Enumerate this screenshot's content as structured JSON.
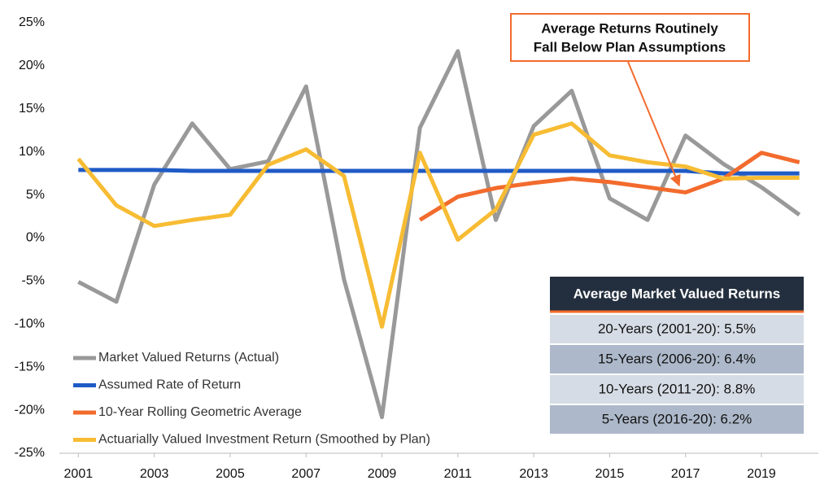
{
  "chart_data": {
    "type": "line",
    "annotation": [
      "Average Returns Routinely",
      "Fall Below Plan Assumptions"
    ],
    "x": [
      2001,
      2002,
      2003,
      2004,
      2005,
      2006,
      2007,
      2008,
      2009,
      2010,
      2011,
      2012,
      2013,
      2014,
      2015,
      2016,
      2017,
      2018,
      2019,
      2020
    ],
    "xlim": [
      2000.5,
      2020.5
    ],
    "xticks": [
      2001,
      2003,
      2005,
      2007,
      2009,
      2011,
      2013,
      2015,
      2017,
      2019
    ],
    "ylim": [
      -25,
      25
    ],
    "yticks": [
      {
        "value": -25,
        "label": "-25%"
      },
      {
        "value": -20,
        "label": "-20%"
      },
      {
        "value": -15,
        "label": "-15%"
      },
      {
        "value": -10,
        "label": "-10%"
      },
      {
        "value": -5,
        "label": "-5%"
      },
      {
        "value": 0,
        "label": "0%"
      },
      {
        "value": 5,
        "label": "5%"
      },
      {
        "value": 10,
        "label": "10%"
      },
      {
        "value": 15,
        "label": "15%"
      },
      {
        "value": 20,
        "label": "20%"
      },
      {
        "value": 25,
        "label": "25%"
      }
    ],
    "grid": false,
    "legend": "lower left",
    "series": [
      {
        "name": "Market Valued Returns (Actual)",
        "color": "#999999",
        "values": [
          -5.1,
          -7.4,
          6.2,
          13.3,
          8.0,
          8.9,
          17.6,
          -4.8,
          -20.8,
          12.8,
          21.7,
          2.1,
          13.0,
          17.1,
          4.6,
          2.1,
          11.9,
          8.6,
          5.9,
          2.7
        ]
      },
      {
        "name": "Assumed Rate of Return",
        "color": "#1f5bc6",
        "values": [
          7.9,
          7.9,
          7.9,
          7.8,
          7.8,
          7.8,
          7.8,
          7.8,
          7.8,
          7.8,
          7.8,
          7.8,
          7.8,
          7.8,
          7.8,
          7.8,
          7.8,
          7.5,
          7.5,
          7.5
        ]
      },
      {
        "name": "10-Year Rolling Geometric Average",
        "color": "#f26b2d",
        "values": [
          null,
          null,
          null,
          null,
          null,
          null,
          null,
          null,
          null,
          2.1,
          4.8,
          5.8,
          6.4,
          6.9,
          6.5,
          5.9,
          5.3,
          6.9,
          9.9,
          8.8
        ]
      },
      {
        "name": "Actuarially Valued Investment Return (Smoothed by Plan)",
        "color": "#f7bc33",
        "values": [
          9.2,
          3.8,
          1.4,
          2.1,
          2.7,
          8.5,
          10.3,
          7.2,
          -10.3,
          9.9,
          -0.2,
          3.3,
          12.0,
          13.3,
          9.6,
          8.8,
          8.3,
          6.9,
          7.0,
          7.0
        ]
      }
    ],
    "table": {
      "title": "Average Market Valued Returns",
      "rows": [
        "20-Years (2001-20): 5.5%",
        "15-Years (2006-20): 6.4%",
        "10-Years (2011-20): 8.8%",
        "5-Years (2016-20): 6.2%"
      ]
    }
  }
}
